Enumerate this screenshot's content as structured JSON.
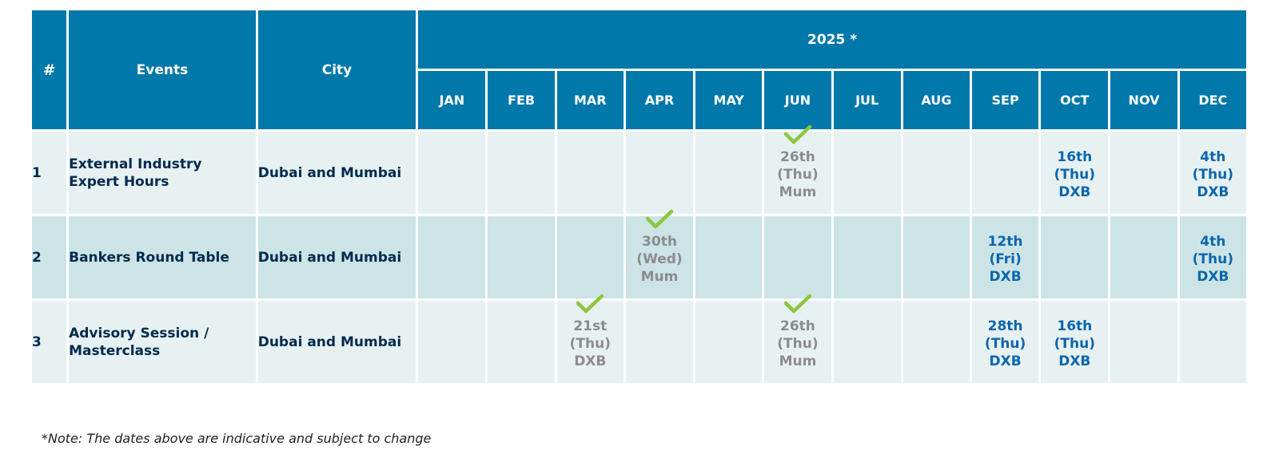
{
  "table": {
    "header": {
      "number": "#",
      "events": "Events",
      "city": "City",
      "year": "2025 *",
      "months": [
        "JAN",
        "FEB",
        "MAR",
        "APR",
        "MAY",
        "JUN",
        "JUL",
        "AUG",
        "SEP",
        "OCT",
        "NOV",
        "DEC"
      ]
    },
    "rows": [
      {
        "number": "1",
        "event": "External Industry Expert Hours",
        "city": "Dubai and Mumbai",
        "dates": {
          "JUN": {
            "day": "26th",
            "weekday": "(Thu)",
            "location": "Mum",
            "status": "done"
          },
          "OCT": {
            "day": "16th",
            "weekday": "(Thu)",
            "location": "DXB",
            "status": "upcoming"
          },
          "DEC": {
            "day": "4th",
            "weekday": "(Thu)",
            "location": "DXB",
            "status": "upcoming"
          }
        }
      },
      {
        "number": "2",
        "event": "Bankers Round Table",
        "city": "Dubai and Mumbai",
        "dates": {
          "APR": {
            "day": "30th",
            "weekday": "(Wed)",
            "location": "Mum",
            "status": "done"
          },
          "SEP": {
            "day": "12th",
            "weekday": "(Fri)",
            "location": "DXB",
            "status": "upcoming"
          },
          "DEC": {
            "day": "4th",
            "weekday": "(Thu)",
            "location": "DXB",
            "status": "upcoming"
          }
        }
      },
      {
        "number": "3",
        "event": "Advisory Session / Masterclass",
        "city": "Dubai and Mumbai",
        "dates": {
          "MAR": {
            "day": "21st",
            "weekday": "(Thu)",
            "location": "DXB",
            "status": "done"
          },
          "JUN": {
            "day": "26th",
            "weekday": "(Thu)",
            "location": "Mum",
            "status": "done"
          },
          "SEP": {
            "day": "28th",
            "weekday": "(Thu)",
            "location": "DXB",
            "status": "upcoming"
          },
          "OCT": {
            "day": "16th",
            "weekday": "(Thu)",
            "location": "DXB",
            "status": "upcoming"
          }
        }
      }
    ]
  },
  "note": "*Note: The dates above are indicative and subject to change",
  "colors": {
    "header_bg": "#0078aa",
    "row_light": "#e7f1f2",
    "row_dark": "#cce4e6",
    "text_dark": "#002a4d",
    "date_done": "#8c8c8c",
    "date_upcoming": "#0b66ad",
    "check": "#8cc63f"
  },
  "icons": {
    "done_marker": "checkmark-icon"
  }
}
